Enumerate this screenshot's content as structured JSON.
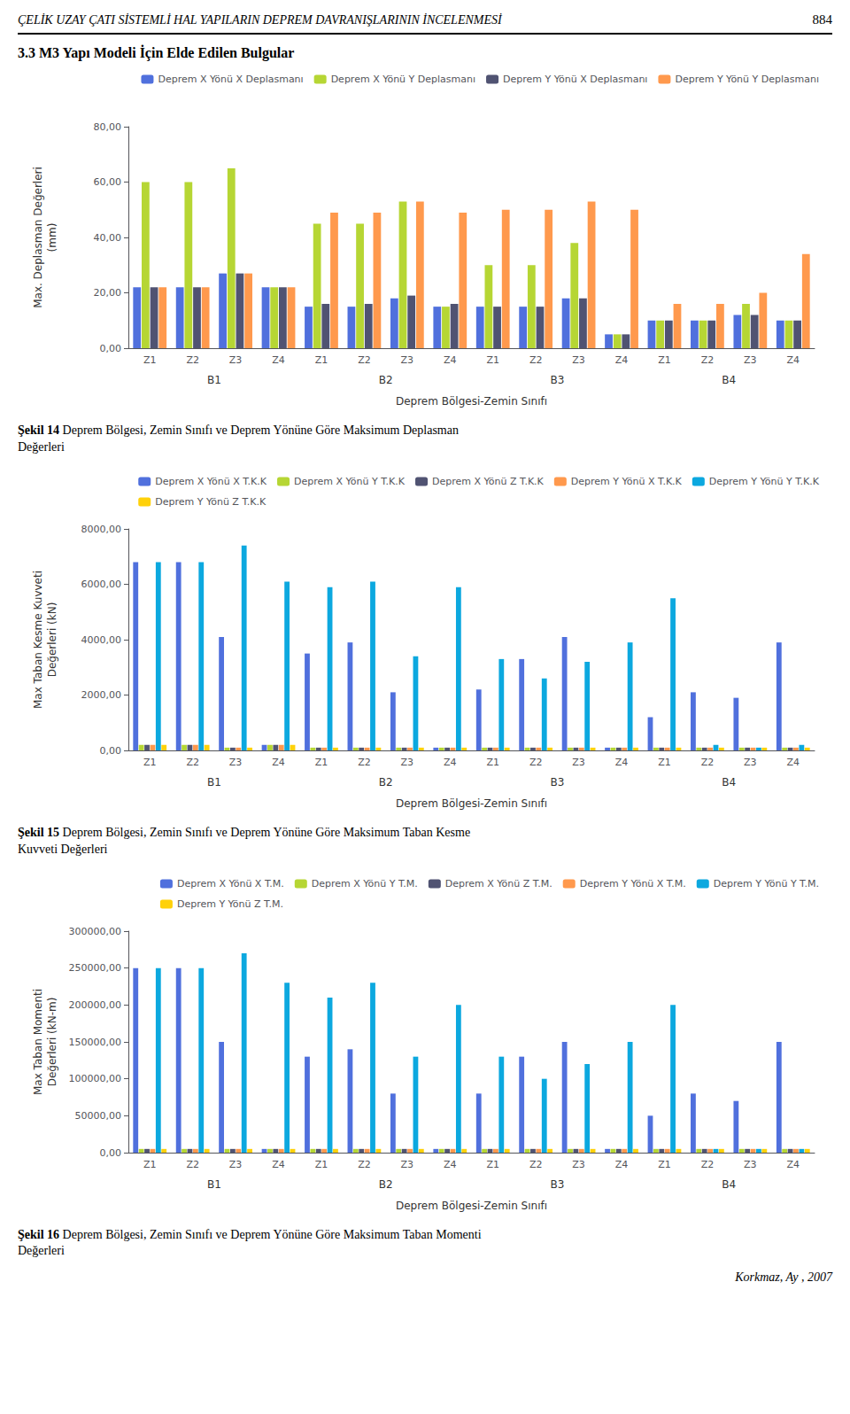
{
  "header": "ÇELİK UZAY ÇATI SİSTEMLİ HAL YAPILARIN DEPREM DAVRANIŞLARININ İNCELENMESİ",
  "page_number": "884",
  "section_title": "3.3 M3 Yapı Modeli İçin Elde Edilen Bulgular",
  "footer": "Korkmaz, Ay , 2007",
  "chart_data": [
    {
      "type": "bar",
      "caption": "Şekil 14 Deprem Bölgesi, Zemin Sınıfı ve Deprem Yönüne Göre Maksimum Deplasman\nDeğerleri",
      "ylabel": "Max. Deplasman Değerleri\n(mm)",
      "xlabel": "Deprem Bölgesi-Zemin Sınıfı",
      "ylim": [
        0,
        80
      ],
      "yticks": [
        {
          "value": 0,
          "label": "0,00"
        },
        {
          "value": 20,
          "label": "20,00"
        },
        {
          "value": 40,
          "label": "40,00"
        },
        {
          "value": 60,
          "label": "60,00"
        },
        {
          "value": 80,
          "label": "80,00"
        }
      ],
      "grid": false,
      "legend": "upper right",
      "groups": [
        "B1",
        "B2",
        "B3",
        "B4"
      ],
      "categories": [
        "Z1",
        "Z2",
        "Z3",
        "Z4",
        "Z1",
        "Z2",
        "Z3",
        "Z4",
        "Z1",
        "Z2",
        "Z3",
        "Z4",
        "Z1",
        "Z2",
        "Z3",
        "Z4"
      ],
      "series": [
        {
          "name": "Deprem X Yönü X Deplasmanı",
          "values": [
            22,
            22,
            27,
            22,
            15,
            15,
            18,
            15,
            15,
            15,
            18,
            5,
            10,
            10,
            12,
            10
          ]
        },
        {
          "name": "Deprem X Yönü Y Deplasmanı",
          "values": [
            60,
            60,
            65,
            22,
            45,
            45,
            53,
            15,
            30,
            30,
            38,
            5,
            10,
            10,
            16,
            10
          ]
        },
        {
          "name": "Deprem Y Yönü X Deplasmanı",
          "values": [
            22,
            22,
            27,
            22,
            16,
            16,
            19,
            16,
            15,
            15,
            18,
            5,
            10,
            10,
            12,
            10
          ]
        },
        {
          "name": "Deprem Y Yönü Y Deplasmanı",
          "values": [
            22,
            22,
            27,
            22,
            49,
            49,
            53,
            49,
            50,
            50,
            53,
            50,
            16,
            16,
            20,
            34
          ]
        }
      ]
    },
    {
      "type": "bar",
      "caption": "Şekil 15 Deprem Bölgesi, Zemin Sınıfı ve Deprem Yönüne Göre Maksimum Taban Kesme\nKuvveti Değerleri",
      "ylabel": "Max Taban Kesme Kuvveti\nDeğerleri (kN)",
      "xlabel": "Deprem Bölgesi-Zemin Sınıfı",
      "ylim": [
        0,
        8000
      ],
      "yticks": [
        {
          "value": 0,
          "label": "0,00"
        },
        {
          "value": 2000,
          "label": "2000,00"
        },
        {
          "value": 4000,
          "label": "4000,00"
        },
        {
          "value": 6000,
          "label": "6000,00"
        },
        {
          "value": 8000,
          "label": "8000,00"
        }
      ],
      "grid": false,
      "legend": "upper right",
      "groups": [
        "B1",
        "B2",
        "B3",
        "B4"
      ],
      "categories": [
        "Z1",
        "Z2",
        "Z3",
        "Z4",
        "Z1",
        "Z2",
        "Z3",
        "Z4",
        "Z1",
        "Z2",
        "Z3",
        "Z4",
        "Z1",
        "Z2",
        "Z3",
        "Z4"
      ],
      "series": [
        {
          "name": "Deprem X Yönü X T.K.K",
          "values": [
            6800,
            6800,
            4100,
            200,
            3500,
            3900,
            2100,
            100,
            2200,
            3300,
            4100,
            100,
            1200,
            2100,
            1900,
            3900
          ]
        },
        {
          "name": "Deprem X Yönü Y T.K.K",
          "values": [
            200,
            200,
            100,
            200,
            100,
            100,
            100,
            100,
            100,
            100,
            100,
            100,
            100,
            100,
            100,
            100
          ]
        },
        {
          "name": "Deprem X Yönü Z T.K.K",
          "values": [
            200,
            200,
            100,
            200,
            100,
            100,
            100,
            100,
            100,
            100,
            100,
            100,
            100,
            100,
            100,
            100
          ]
        },
        {
          "name": "Deprem Y Yönü X T.K.K",
          "values": [
            200,
            200,
            100,
            200,
            100,
            100,
            100,
            100,
            100,
            100,
            100,
            100,
            100,
            100,
            100,
            100
          ]
        },
        {
          "name": "Deprem Y Yönü Y T.K.K",
          "values": [
            6800,
            6800,
            7400,
            6100,
            5900,
            6100,
            3400,
            5900,
            3300,
            2600,
            3200,
            3900,
            5500,
            200,
            100,
            200
          ]
        },
        {
          "name": "Deprem Y Yönü Z T.K.K",
          "values": [
            200,
            200,
            100,
            200,
            100,
            100,
            100,
            100,
            100,
            100,
            100,
            100,
            100,
            100,
            100,
            100
          ]
        }
      ]
    },
    {
      "type": "bar",
      "caption": "Şekil 16 Deprem Bölgesi, Zemin Sınıfı ve Deprem Yönüne Göre Maksimum Taban Momenti\nDeğerleri",
      "ylabel": "Max Taban Momenti\nDeğerleri (kN-m)",
      "xlabel": "Deprem Bölgesi-Zemin Sınıfı",
      "ylim": [
        0,
        300000
      ],
      "yticks": [
        {
          "value": 0,
          "label": "0,00"
        },
        {
          "value": 50000,
          "label": "50000,00"
        },
        {
          "value": 100000,
          "label": "100000,00"
        },
        {
          "value": 150000,
          "label": "150000,00"
        },
        {
          "value": 200000,
          "label": "200000,00"
        },
        {
          "value": 250000,
          "label": "250000,00"
        },
        {
          "value": 300000,
          "label": "300000,00"
        }
      ],
      "grid": false,
      "legend": "upper right",
      "groups": [
        "B1",
        "B2",
        "B3",
        "B4"
      ],
      "categories": [
        "Z1",
        "Z2",
        "Z3",
        "Z4",
        "Z1",
        "Z2",
        "Z3",
        "Z4",
        "Z1",
        "Z2",
        "Z3",
        "Z4",
        "Z1",
        "Z2",
        "Z3",
        "Z4"
      ],
      "series": [
        {
          "name": "Deprem X Yönü X T.M.",
          "values": [
            250000,
            250000,
            150000,
            5000,
            130000,
            140000,
            80000,
            5000,
            80000,
            130000,
            150000,
            5000,
            50000,
            80000,
            70000,
            150000
          ]
        },
        {
          "name": "Deprem X Yönü Y T.M.",
          "values": [
            5000,
            5000,
            5000,
            5000,
            5000,
            5000,
            5000,
            5000,
            5000,
            5000,
            5000,
            5000,
            5000,
            5000,
            5000,
            5000
          ]
        },
        {
          "name": "Deprem X Yönü Z T.M.",
          "values": [
            5000,
            5000,
            5000,
            5000,
            5000,
            5000,
            5000,
            5000,
            5000,
            5000,
            5000,
            5000,
            5000,
            5000,
            5000,
            5000
          ]
        },
        {
          "name": "Deprem Y Yönü X T.M.",
          "values": [
            5000,
            5000,
            5000,
            5000,
            5000,
            5000,
            5000,
            5000,
            5000,
            5000,
            5000,
            5000,
            5000,
            5000,
            5000,
            5000
          ]
        },
        {
          "name": "Deprem Y Yönü Y T.M.",
          "values": [
            250000,
            250000,
            270000,
            230000,
            210000,
            230000,
            130000,
            200000,
            130000,
            100000,
            120000,
            150000,
            200000,
            5000,
            5000,
            5000
          ]
        },
        {
          "name": "Deprem Y Yönü Z T.M.",
          "values": [
            5000,
            5000,
            5000,
            5000,
            5000,
            5000,
            5000,
            5000,
            5000,
            5000,
            5000,
            5000,
            5000,
            5000,
            5000,
            5000
          ]
        }
      ]
    }
  ]
}
